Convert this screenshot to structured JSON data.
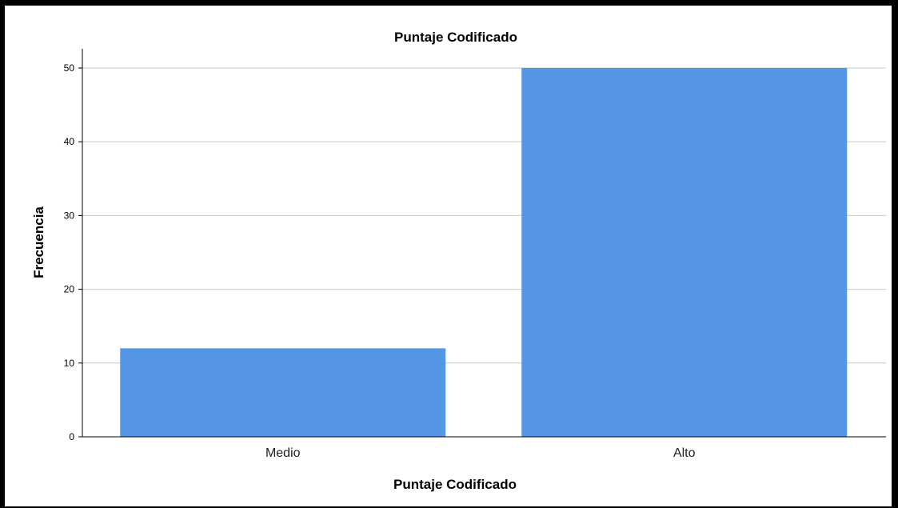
{
  "chart_data": {
    "type": "bar",
    "title": "Puntaje Codificado",
    "xlabel": "Puntaje Codificado",
    "ylabel": "Frecuencia",
    "categories": [
      "Medio",
      "Alto"
    ],
    "values": [
      12,
      50
    ],
    "ylim": [
      0,
      52.6
    ],
    "yticks": [
      "0",
      "10",
      "20",
      "30",
      "40",
      "50"
    ],
    "grid": true,
    "bar_color": "#5597e5",
    "grid_color": "#c8c8c8",
    "legend": "none"
  }
}
